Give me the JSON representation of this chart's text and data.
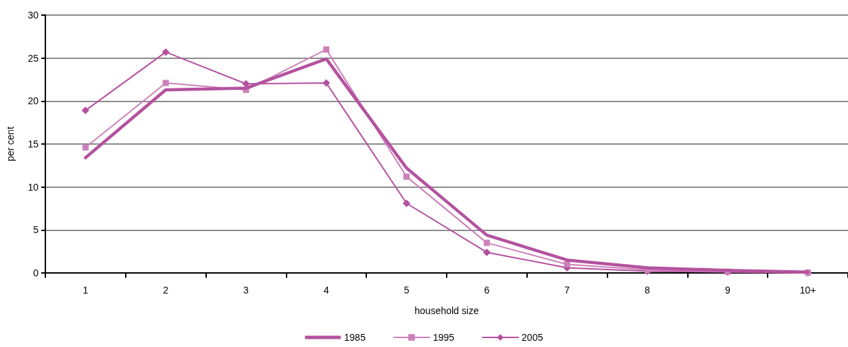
{
  "chart_data": {
    "type": "line",
    "xlabel": "household size",
    "ylabel": "per cent",
    "categories": [
      "1",
      "2",
      "3",
      "4",
      "5",
      "6",
      "7",
      "8",
      "9",
      "10+"
    ],
    "series": [
      {
        "name": "1985",
        "color": "#b4529f",
        "marker": "none",
        "values": [
          13.4,
          21.3,
          21.5,
          24.9,
          12.2,
          4.4,
          1.5,
          0.6,
          0.3,
          0.1
        ]
      },
      {
        "name": "1995",
        "color": "#cc80ba",
        "marker": "square",
        "values": [
          14.6,
          22.1,
          21.3,
          26.0,
          11.2,
          3.5,
          1.0,
          0.35,
          0.15,
          0.05
        ]
      },
      {
        "name": "2005",
        "color": "#b54f9e",
        "marker": "diamond",
        "values": [
          18.9,
          25.7,
          22.0,
          22.1,
          8.1,
          2.4,
          0.6,
          0.2,
          0.1,
          0.0
        ]
      }
    ],
    "ylim": [
      0,
      30
    ],
    "yticks": [
      0,
      5,
      10,
      15,
      20,
      25,
      30
    ],
    "grid": "y",
    "legend": "bottom"
  }
}
